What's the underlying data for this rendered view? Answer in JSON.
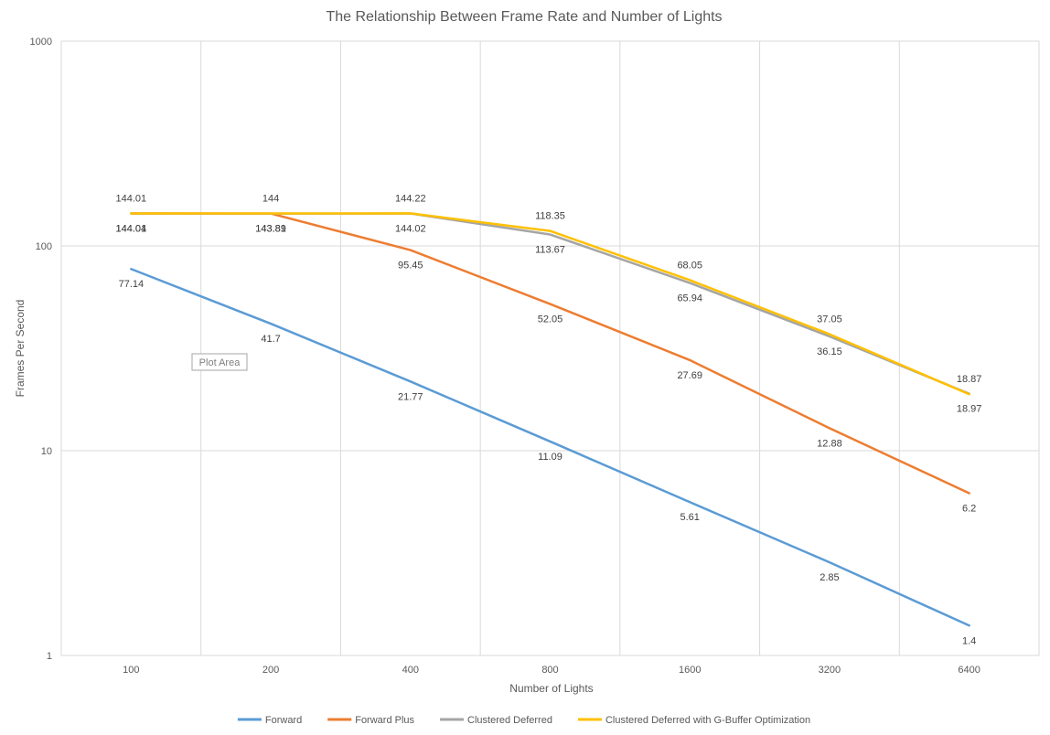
{
  "chart_data": {
    "type": "line",
    "title": "The Relationship Between Frame Rate and Number of Lights",
    "xlabel": "Number of Lights",
    "ylabel": "Frames Per Second",
    "categories": [
      "100",
      "200",
      "400",
      "800",
      "1600",
      "3200",
      "6400"
    ],
    "y_scale": "log",
    "ylim": [
      1,
      1000
    ],
    "y_ticks": [
      "1",
      "10",
      "100",
      "1000"
    ],
    "grid": true,
    "legend_position": "bottom",
    "series": [
      {
        "name": "Forward",
        "color": "#5b9bd5",
        "values": [
          77.14,
          41.7,
          21.77,
          11.09,
          5.61,
          2.85,
          1.4
        ],
        "labels": [
          "77.14",
          "41.7",
          "21.77",
          "11.09",
          "5.61",
          "2.85",
          "1.4"
        ],
        "label_pos": "below"
      },
      {
        "name": "Forward Plus",
        "color": "#ed7d31",
        "values": [
          144.04,
          143.89,
          95.45,
          52.05,
          27.69,
          12.88,
          6.2
        ],
        "labels": [
          "144.04",
          "143.89",
          "95.45",
          "52.05",
          "27.69",
          "12.88",
          "6.2"
        ],
        "label_pos": "below"
      },
      {
        "name": "Clustered Deferred",
        "color": "#a5a5a5",
        "values": [
          144.01,
          143.81,
          144.02,
          113.67,
          65.94,
          36.15,
          18.97
        ],
        "labels": [
          "144.01",
          "143.81",
          "144.02",
          "113.67",
          "65.94",
          "36.15",
          "18.97"
        ],
        "label_pos": "below"
      },
      {
        "name": "Clustered Deferred with G-Buffer Optimization",
        "color": "#ffc000",
        "values": [
          144.01,
          144,
          144.22,
          118.35,
          68.05,
          37.05,
          18.87
        ],
        "labels": [
          "144.01",
          "144",
          "144.22",
          "118.35",
          "68.05",
          "37.05",
          "18.87"
        ],
        "label_pos": "above"
      }
    ],
    "tooltip": "Plot Area"
  }
}
